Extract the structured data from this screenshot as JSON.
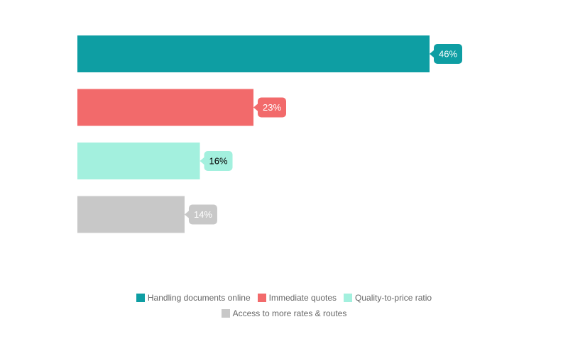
{
  "chart_data": {
    "type": "bar",
    "orientation": "horizontal",
    "categories": [
      "Handling documents online",
      "Immediate quotes",
      "Quality-to-price ratio",
      "Access to more rates & routes"
    ],
    "values": [
      46,
      23,
      16,
      14
    ],
    "value_labels": [
      "46%",
      "23%",
      "16%",
      "14%"
    ],
    "colors": [
      "#0e9ea3",
      "#f26a6b",
      "#a3f0de",
      "#c8c8c8"
    ],
    "label_text_colors": [
      "#ffffff",
      "#ffffff",
      "#000000",
      "#ffffff"
    ],
    "xlim": [
      0,
      46
    ],
    "grid": false,
    "legend_position": "bottom"
  }
}
